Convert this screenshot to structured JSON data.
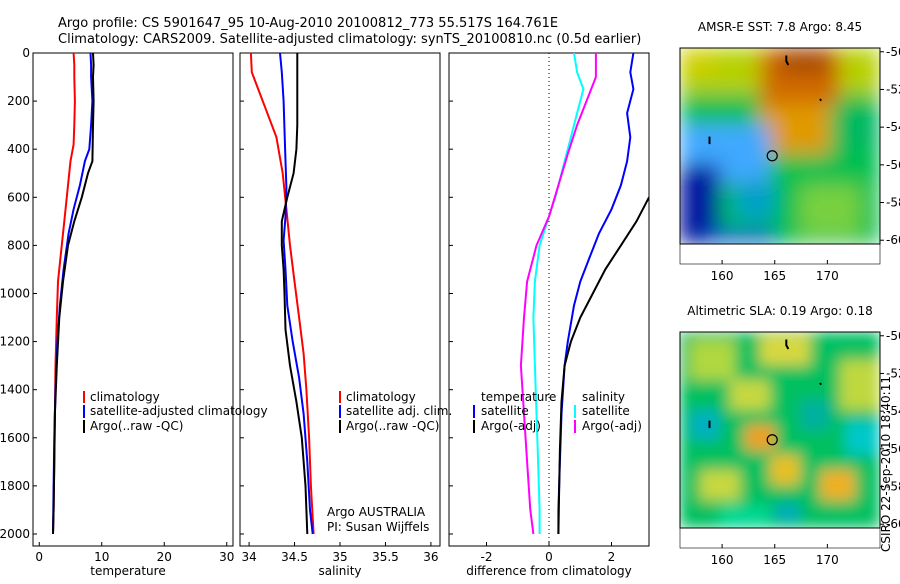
{
  "header": {
    "line1": "Argo profile: CS 5901647_95 10-Aug-2010 20100812_773 55.517S 164.761E",
    "line2": "Climatology: CARS2009. Satellite-adjusted climatology: synTS_20100810.nc (0.5d earlier)"
  },
  "side_label": "CSIRO 22-Sep-2010 18:40:11",
  "float_note": {
    "line1": "Argo AUSTRALIA",
    "line2": "PI: Susan Wijffels"
  },
  "colors": {
    "climatology": "#ff0000",
    "satellite": "#0000ff",
    "argo": "#000000",
    "salinity_satellite": "#00ffff",
    "salinity_argo": "#ff00ff"
  },
  "chart_data": [
    {
      "type": "line",
      "name": "temperature-profile",
      "xlabel": "temperature",
      "ylabel": "",
      "xlim": [
        -1,
        31
      ],
      "ylim": [
        2050,
        0
      ],
      "xticks": [
        0,
        10,
        20,
        30
      ],
      "yticks": [
        0,
        200,
        400,
        600,
        800,
        1000,
        1200,
        1400,
        1600,
        1800,
        2000
      ],
      "legend": {
        "placement": "lower-right",
        "entries": [
          "climatology",
          "satellite-adjusted climatology",
          "Argo(..raw -QC)"
        ]
      },
      "series": [
        {
          "name": "climatology",
          "color_key": "climatology",
          "points": [
            [
              5.5,
              0
            ],
            [
              5.6,
              50
            ],
            [
              5.6,
              100
            ],
            [
              5.7,
              200
            ],
            [
              5.6,
              300
            ],
            [
              5.5,
              380
            ],
            [
              5.0,
              450
            ],
            [
              4.6,
              550
            ],
            [
              4.0,
              700
            ],
            [
              3.4,
              850
            ],
            [
              3.0,
              950
            ],
            [
              2.8,
              1100
            ],
            [
              2.6,
              1300
            ],
            [
              2.5,
              1500
            ],
            [
              2.4,
              1700
            ],
            [
              2.3,
              1900
            ],
            [
              2.2,
              2000
            ]
          ]
        },
        {
          "name": "satellite-adjusted climatology",
          "color_key": "satellite",
          "points": [
            [
              8.2,
              0
            ],
            [
              8.3,
              50
            ],
            [
              8.3,
              100
            ],
            [
              8.5,
              200
            ],
            [
              8.3,
              300
            ],
            [
              8.0,
              400
            ],
            [
              7.3,
              450
            ],
            [
              6.5,
              550
            ],
            [
              5.5,
              650
            ],
            [
              4.7,
              750
            ],
            [
              3.9,
              900
            ],
            [
              3.3,
              1050
            ],
            [
              2.9,
              1200
            ],
            [
              2.6,
              1400
            ],
            [
              2.4,
              1600
            ],
            [
              2.3,
              1800
            ],
            [
              2.2,
              2000
            ]
          ]
        },
        {
          "name": "Argo(..raw -QC)",
          "color_key": "argo",
          "points": [
            [
              8.6,
              0
            ],
            [
              8.7,
              50
            ],
            [
              8.6,
              100
            ],
            [
              8.7,
              200
            ],
            [
              8.6,
              300
            ],
            [
              8.5,
              450
            ],
            [
              7.8,
              500
            ],
            [
              6.8,
              600
            ],
            [
              5.6,
              700
            ],
            [
              4.6,
              800
            ],
            [
              3.8,
              950
            ],
            [
              3.2,
              1100
            ],
            [
              2.8,
              1300
            ],
            [
              2.5,
              1500
            ],
            [
              2.4,
              1700
            ],
            [
              2.3,
              1900
            ],
            [
              2.2,
              2000
            ]
          ]
        }
      ]
    },
    {
      "type": "line",
      "name": "salinity-profile",
      "xlabel": "salinity",
      "ylabel": "",
      "xlim": [
        33.9,
        36.1
      ],
      "ylim": [
        2050,
        0
      ],
      "xticks": [
        34,
        34.5,
        35,
        35.5,
        36
      ],
      "legend": {
        "placement": "lower-right",
        "entries": [
          "climatology",
          "satellite adj. clim.",
          "Argo(..raw -QC)"
        ]
      },
      "series": [
        {
          "name": "climatology",
          "color_key": "climatology",
          "points": [
            [
              34.02,
              0
            ],
            [
              34.03,
              80
            ],
            [
              34.1,
              150
            ],
            [
              34.18,
              230
            ],
            [
              34.3,
              350
            ],
            [
              34.37,
              500
            ],
            [
              34.41,
              650
            ],
            [
              34.45,
              800
            ],
            [
              34.5,
              950
            ],
            [
              34.55,
              1100
            ],
            [
              34.6,
              1250
            ],
            [
              34.63,
              1400
            ],
            [
              34.66,
              1600
            ],
            [
              34.68,
              1800
            ],
            [
              34.71,
              2000
            ]
          ]
        },
        {
          "name": "satellite adj. clim.",
          "color_key": "satellite",
          "points": [
            [
              34.34,
              0
            ],
            [
              34.36,
              80
            ],
            [
              34.38,
              200
            ],
            [
              34.39,
              320
            ],
            [
              34.4,
              450
            ],
            [
              34.41,
              560
            ],
            [
              34.4,
              680
            ],
            [
              34.38,
              780
            ],
            [
              34.4,
              900
            ],
            [
              34.42,
              1050
            ],
            [
              34.48,
              1200
            ],
            [
              34.55,
              1350
            ],
            [
              34.6,
              1500
            ],
            [
              34.64,
              1700
            ],
            [
              34.67,
              1900
            ],
            [
              34.7,
              2000
            ]
          ]
        },
        {
          "name": "Argo(..raw -QC)",
          "color_key": "argo",
          "points": [
            [
              34.53,
              0
            ],
            [
              34.53,
              80
            ],
            [
              34.53,
              200
            ],
            [
              34.53,
              300
            ],
            [
              34.52,
              400
            ],
            [
              34.49,
              500
            ],
            [
              34.42,
              600
            ],
            [
              34.36,
              700
            ],
            [
              34.36,
              800
            ],
            [
              34.38,
              900
            ],
            [
              34.39,
              1000
            ],
            [
              34.4,
              1150
            ],
            [
              34.45,
              1300
            ],
            [
              34.52,
              1450
            ],
            [
              34.58,
              1600
            ],
            [
              34.62,
              1800
            ],
            [
              34.64,
              2000
            ]
          ]
        }
      ]
    },
    {
      "type": "line",
      "name": "difference-profile",
      "xlabel": "difference from climatology",
      "ylabel": "",
      "xlim": [
        -3.2,
        3.2
      ],
      "ylim": [
        2050,
        0
      ],
      "xticks": [
        -2,
        0,
        2
      ],
      "zero_line": 0,
      "legend": {
        "placement": "lower-center",
        "columns": [
          {
            "title": "temperature",
            "entries": [
              "satellite",
              "Argo(-adj)"
            ]
          },
          {
            "title": "salinity",
            "entries": [
              "satellite",
              "Argo(-adj)"
            ]
          }
        ]
      },
      "series": [
        {
          "name": "temperature satellite",
          "color_key": "satellite",
          "points": [
            [
              2.7,
              0
            ],
            [
              2.6,
              80
            ],
            [
              2.7,
              150
            ],
            [
              2.5,
              250
            ],
            [
              2.6,
              350
            ],
            [
              2.5,
              450
            ],
            [
              2.3,
              550
            ],
            [
              2.0,
              650
            ],
            [
              1.6,
              750
            ],
            [
              1.3,
              850
            ],
            [
              1.0,
              950
            ],
            [
              0.8,
              1050
            ],
            [
              0.6,
              1200
            ],
            [
              0.5,
              1300
            ],
            [
              0.4,
              1500
            ],
            [
              0.35,
              1700
            ],
            [
              0.3,
              1900
            ],
            [
              0.3,
              2000
            ]
          ]
        },
        {
          "name": "temperature Argo(-adj)",
          "color_key": "argo",
          "points": [
            [
              3.2,
              600
            ],
            [
              2.8,
              700
            ],
            [
              2.3,
              800
            ],
            [
              1.8,
              900
            ],
            [
              1.4,
              1000
            ],
            [
              1.0,
              1100
            ],
            [
              0.7,
              1200
            ],
            [
              0.5,
              1300
            ],
            [
              0.4,
              1450
            ],
            [
              0.35,
              1650
            ],
            [
              0.32,
              1850
            ],
            [
              0.3,
              2000
            ]
          ]
        },
        {
          "name": "salinity satellite",
          "color_key": "salinity_satellite",
          "points": [
            [
              0.8,
              0
            ],
            [
              0.9,
              80
            ],
            [
              1.1,
              150
            ],
            [
              0.9,
              250
            ],
            [
              0.7,
              350
            ],
            [
              0.5,
              450
            ],
            [
              0.2,
              600
            ],
            [
              0.0,
              680
            ],
            [
              -0.3,
              800
            ],
            [
              -0.45,
              950
            ],
            [
              -0.5,
              1100
            ],
            [
              -0.45,
              1300
            ],
            [
              -0.4,
              1500
            ],
            [
              -0.35,
              1700
            ],
            [
              -0.3,
              1900
            ],
            [
              -0.3,
              2000
            ]
          ]
        },
        {
          "name": "salinity Argo(-adj)",
          "color_key": "salinity_argo",
          "points": [
            [
              1.5,
              0
            ],
            [
              1.5,
              100
            ],
            [
              1.2,
              200
            ],
            [
              0.9,
              300
            ],
            [
              0.6,
              420
            ],
            [
              0.3,
              550
            ],
            [
              0.0,
              680
            ],
            [
              -0.4,
              800
            ],
            [
              -0.7,
              950
            ],
            [
              -0.8,
              1100
            ],
            [
              -0.9,
              1300
            ],
            [
              -0.8,
              1500
            ],
            [
              -0.7,
              1700
            ],
            [
              -0.6,
              1900
            ],
            [
              -0.5,
              2000
            ]
          ]
        }
      ]
    },
    {
      "type": "heatmap",
      "name": "sst-map",
      "title": "AMSR-E SST: 7.8 Argo: 8.45",
      "xlim": [
        156,
        175
      ],
      "ylim": [
        -60.2,
        -49.8
      ],
      "xticks": [
        160,
        165,
        170
      ],
      "yticks": [
        -50,
        -52,
        -54,
        -56,
        -58,
        -60
      ],
      "marker": {
        "lon": 164.761,
        "lat": -55.517
      },
      "tracks": [
        [
          [
            166.1,
            -50.2
          ],
          [
            166.1,
            -50.5
          ],
          [
            166.3,
            -50.7
          ]
        ],
        [
          [
            169.3,
            -52.5
          ],
          [
            169.4,
            -52.6
          ]
        ],
        [
          [
            158.8,
            -54.5
          ],
          [
            158.8,
            -54.9
          ]
        ]
      ]
    },
    {
      "type": "heatmap",
      "name": "sla-map",
      "title": "Altimetric SLA: 0.19 Argo: 0.18",
      "xlim": [
        156,
        175
      ],
      "ylim": [
        -60.2,
        -49.8
      ],
      "xticks": [
        160,
        165,
        170
      ],
      "yticks": [
        -50,
        -52,
        -54,
        -56,
        -58,
        -60
      ],
      "marker": {
        "lon": 164.761,
        "lat": -55.517
      },
      "tracks": [
        [
          [
            166.1,
            -50.2
          ],
          [
            166.1,
            -50.5
          ],
          [
            166.3,
            -50.7
          ]
        ],
        [
          [
            169.3,
            -52.5
          ],
          [
            169.4,
            -52.6
          ]
        ],
        [
          [
            158.8,
            -54.5
          ],
          [
            158.8,
            -54.9
          ]
        ]
      ]
    }
  ]
}
